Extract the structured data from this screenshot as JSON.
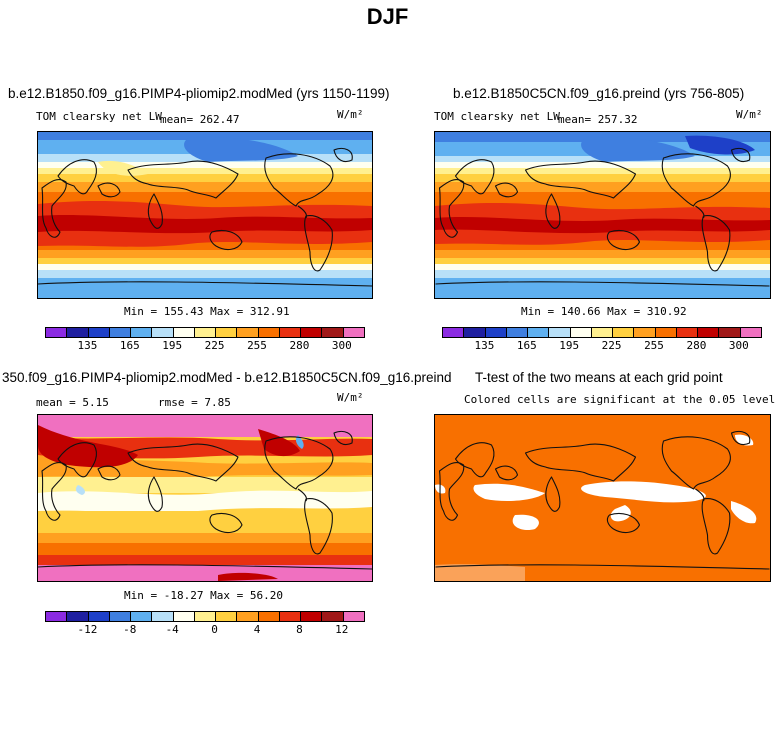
{
  "title": "DJF",
  "panels": [
    {
      "title": "b.e12.B1850.f09_g16.PIMP4-pliomip2.modMed (yrs 1150-1199)",
      "variable": "TOM clearsky net LW",
      "mean_text": "mean= 262.47",
      "units": "W/m²",
      "minmax": "Min = 155.43 Max = 312.91"
    },
    {
      "title": "b.e12.B1850C5CN.f09_g16.preind (yrs 756-805)",
      "variable": "TOM clearsky net LW",
      "mean_text": "mean= 257.32",
      "units": "W/m²",
      "minmax": "Min = 140.66 Max = 310.92"
    },
    {
      "title": "350.f09_g16.PIMP4-pliomip2.modMed - b.e12.B1850C5CN.f09_g16.preind",
      "mean_text": "mean =    5.15",
      "rmse_text": "rmse =    7.85",
      "units": "W/m²",
      "minmax": "Min = -18.27 Max =  56.20"
    },
    {
      "title": "T-test of the two means at each grid point",
      "subtitle": "Colored cells are significant at the 0.05 level"
    }
  ],
  "colorbar_abs": {
    "ticks": [
      "135",
      "165",
      "195",
      "225",
      "255",
      "280",
      "300"
    ],
    "colors": [
      "#8b2be2",
      "#1f1fa0",
      "#1e40c8",
      "#3f7fe0",
      "#5fb0f0",
      "#b8e0f8",
      "#fffff0",
      "#fff090",
      "#ffd040",
      "#ffa020",
      "#f87000",
      "#e83010",
      "#c00000",
      "#a01818",
      "#f070c0"
    ]
  },
  "colorbar_diff": {
    "ticks": [
      "-12",
      "-8",
      "-4",
      "0",
      "4",
      "8",
      "12"
    ],
    "colors": [
      "#8b2be2",
      "#1f1fa0",
      "#1e40c8",
      "#3f7fe0",
      "#5fb0f0",
      "#b8e0f8",
      "#fffff0",
      "#fff090",
      "#ffd040",
      "#ffa020",
      "#f87000",
      "#e83010",
      "#c00000",
      "#a01818",
      "#f070c0"
    ]
  },
  "chart_data": [
    {
      "type": "heatmap",
      "title": "b.e12.B1850.f09_g16.PIMP4-pliomip2.modMed (yrs 1150-1199)",
      "variable": "TOM clearsky net LW",
      "units": "W/m²",
      "mean": 262.47,
      "min": 155.43,
      "max": 312.91,
      "colorbar_ticks": [
        135,
        165,
        195,
        225,
        255,
        280,
        300
      ]
    },
    {
      "type": "heatmap",
      "title": "b.e12.B1850C5CN.f09_g16.preind (yrs 756-805)",
      "variable": "TOM clearsky net LW",
      "units": "W/m²",
      "mean": 257.32,
      "min": 140.66,
      "max": 310.92,
      "colorbar_ticks": [
        135,
        165,
        195,
        225,
        255,
        280,
        300
      ]
    },
    {
      "type": "heatmap",
      "title": "350.f09_g16.PIMP4-pliomip2.modMed - b.e12.B1850C5CN.f09_g16.preind",
      "units": "W/m²",
      "mean": 5.15,
      "rmse": 7.85,
      "min": -18.27,
      "max": 56.2,
      "colorbar_ticks": [
        -12,
        -8,
        -4,
        0,
        4,
        8,
        12
      ]
    },
    {
      "type": "heatmap",
      "title": "T-test of the two means at each grid point",
      "subtitle": "Colored cells are significant at the 0.05 level",
      "significance_level": 0.05,
      "significant_color": "#f87000"
    }
  ]
}
